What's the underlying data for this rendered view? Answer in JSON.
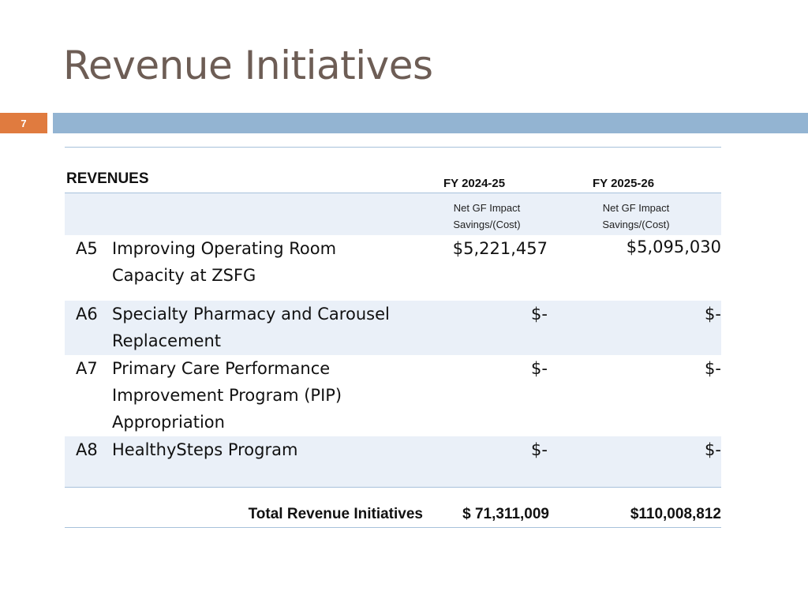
{
  "slide": {
    "title": "Revenue Initiatives",
    "number": "7",
    "colors": {
      "title": "#6d5d55",
      "number_bg": "#e07b3f",
      "bar": "#93b4d2",
      "row_shade": "#eaf0f8",
      "rule": "#a7c1db"
    }
  },
  "table": {
    "section_label": "REVENUES",
    "columns": [
      {
        "year": "FY 2024-25",
        "sub1": "Net GF Impact",
        "sub2": "Savings/(Cost)"
      },
      {
        "year": "FY 2025-26",
        "sub1": "Net GF Impact",
        "sub2": "Savings/(Cost)"
      }
    ],
    "rows": [
      {
        "code": "A5",
        "desc1": "Improving Operating Room",
        "desc2": "Capacity at ZSFG",
        "desc3": "",
        "fy2425": "$5,221,457",
        "fy2526": "$5,095,030"
      },
      {
        "code": "A6",
        "desc1": "Specialty Pharmacy and Carousel",
        "desc2": "Replacement",
        "desc3": "",
        "fy2425": "$-",
        "fy2526": "$-"
      },
      {
        "code": "A7",
        "desc1": "Primary Care Performance",
        "desc2": "Improvement Program (PIP)",
        "desc3": "Appropriation",
        "fy2425": "$-",
        "fy2526": "$-"
      },
      {
        "code": "A8",
        "desc1": "HealthySteps Program",
        "desc2": "",
        "desc3": "",
        "fy2425": "$-",
        "fy2526": "$-"
      }
    ],
    "total": {
      "label": "Total Revenue Initiatives",
      "fy2425": "$ 71,311,009",
      "fy2526": "$110,008,812"
    }
  }
}
